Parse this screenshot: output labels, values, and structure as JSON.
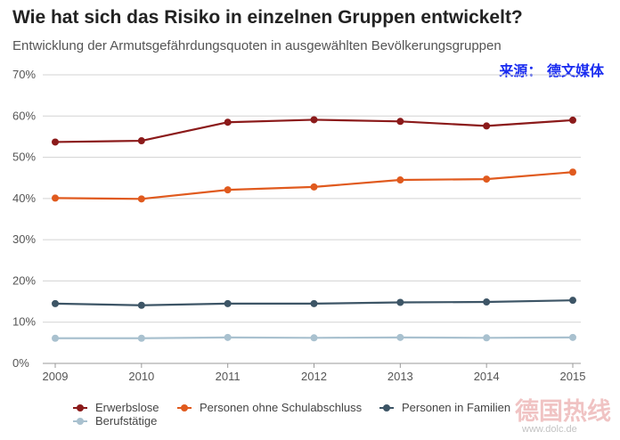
{
  "chart_data": {
    "type": "line",
    "title": "Wie hat sich das Risiko in einzelnen Gruppen entwickelt?",
    "subtitle": "Entwicklung der Armutsgefährdungsquoten in ausgewählten Bevölkerungsgruppen",
    "source": "来源： 德文媒体",
    "x": [
      "2009",
      "2010",
      "2011",
      "2012",
      "2013",
      "2014",
      "2015"
    ],
    "ylim": [
      0,
      70
    ],
    "yticks": [
      0,
      10,
      20,
      30,
      40,
      50,
      60,
      70
    ],
    "ytick_labels": [
      "0%",
      "10%",
      "20%",
      "30%",
      "40%",
      "50%",
      "60%",
      "70%"
    ],
    "xlabel": "",
    "ylabel": "",
    "grid": true,
    "legend_position": "bottom",
    "series": [
      {
        "name": "Erwerbslose",
        "color": "#8b1a1a",
        "values": [
          53.7,
          54.0,
          58.5,
          59.1,
          58.7,
          57.6,
          59.0
        ]
      },
      {
        "name": "Personen ohne Schulabschluss",
        "color": "#e05a1e",
        "values": [
          40.1,
          39.9,
          42.1,
          42.8,
          44.5,
          44.7,
          46.4
        ]
      },
      {
        "name": "Personen in Familien",
        "color": "#3d5566",
        "values": [
          14.5,
          14.1,
          14.5,
          14.5,
          14.8,
          14.9,
          15.3
        ]
      },
      {
        "name": "Berufstätige",
        "color": "#a9c1cf",
        "values": [
          6.1,
          6.1,
          6.3,
          6.2,
          6.3,
          6.2,
          6.3
        ]
      }
    ]
  },
  "watermark": {
    "text": "德国热线",
    "url": "www.dolc.de"
  }
}
